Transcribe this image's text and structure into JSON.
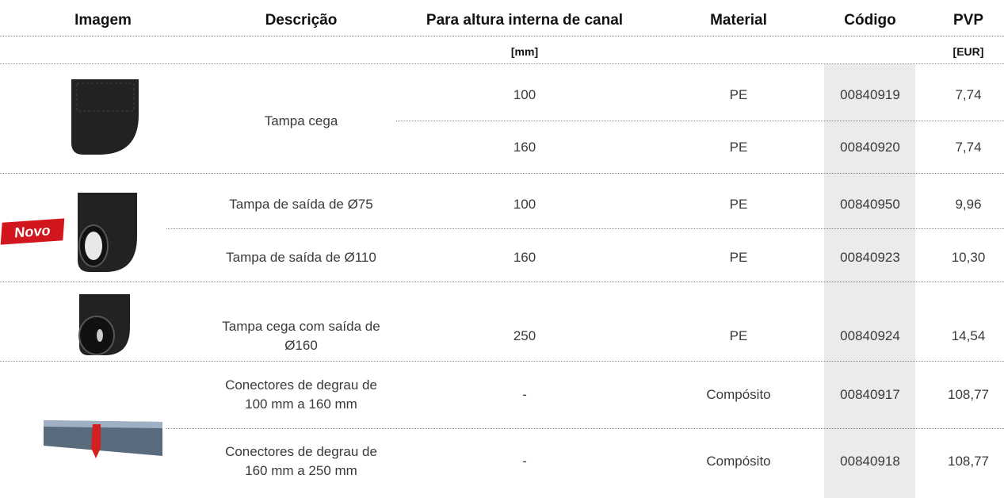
{
  "table": {
    "headers": [
      "Imagem",
      "Descrição",
      "Para altura interna de canal",
      "Material",
      "Código",
      "PVP"
    ],
    "units": {
      "height": "[mm]",
      "price": "[EUR]"
    },
    "groups": [
      {
        "description": "Tampa cega",
        "rows": [
          {
            "height": 100,
            "material": "PE",
            "code": "00840919",
            "price": "7,74"
          },
          {
            "height": 160,
            "material": "PE",
            "code": "00840920",
            "price": "7,74"
          }
        ]
      },
      {
        "badge": "Novo",
        "rows": [
          {
            "description": "Tampa de saída de Ø75",
            "height": 100,
            "material": "PE",
            "code": "00840950",
            "price": "9,96"
          },
          {
            "description": "Tampa de saída de Ø110",
            "height": 160,
            "material": "PE",
            "code": "00840923",
            "price": "10,30"
          }
        ]
      },
      {
        "rows": [
          {
            "description": "Tampa cega com saída de Ø160",
            "height": 250,
            "material": "PE",
            "code": "00840924",
            "price": "14,54"
          }
        ]
      },
      {
        "rows": [
          {
            "description": "Conectores de degrau de 100 mm a 160 mm",
            "height": "-",
            "material": "Compósito",
            "code": "00840917",
            "price": "108,77"
          },
          {
            "description": "Conectores de degrau de 160 mm a 250 mm",
            "height": "-",
            "material": "Compósito",
            "code": "00840918",
            "price": "108,77"
          }
        ]
      }
    ]
  }
}
